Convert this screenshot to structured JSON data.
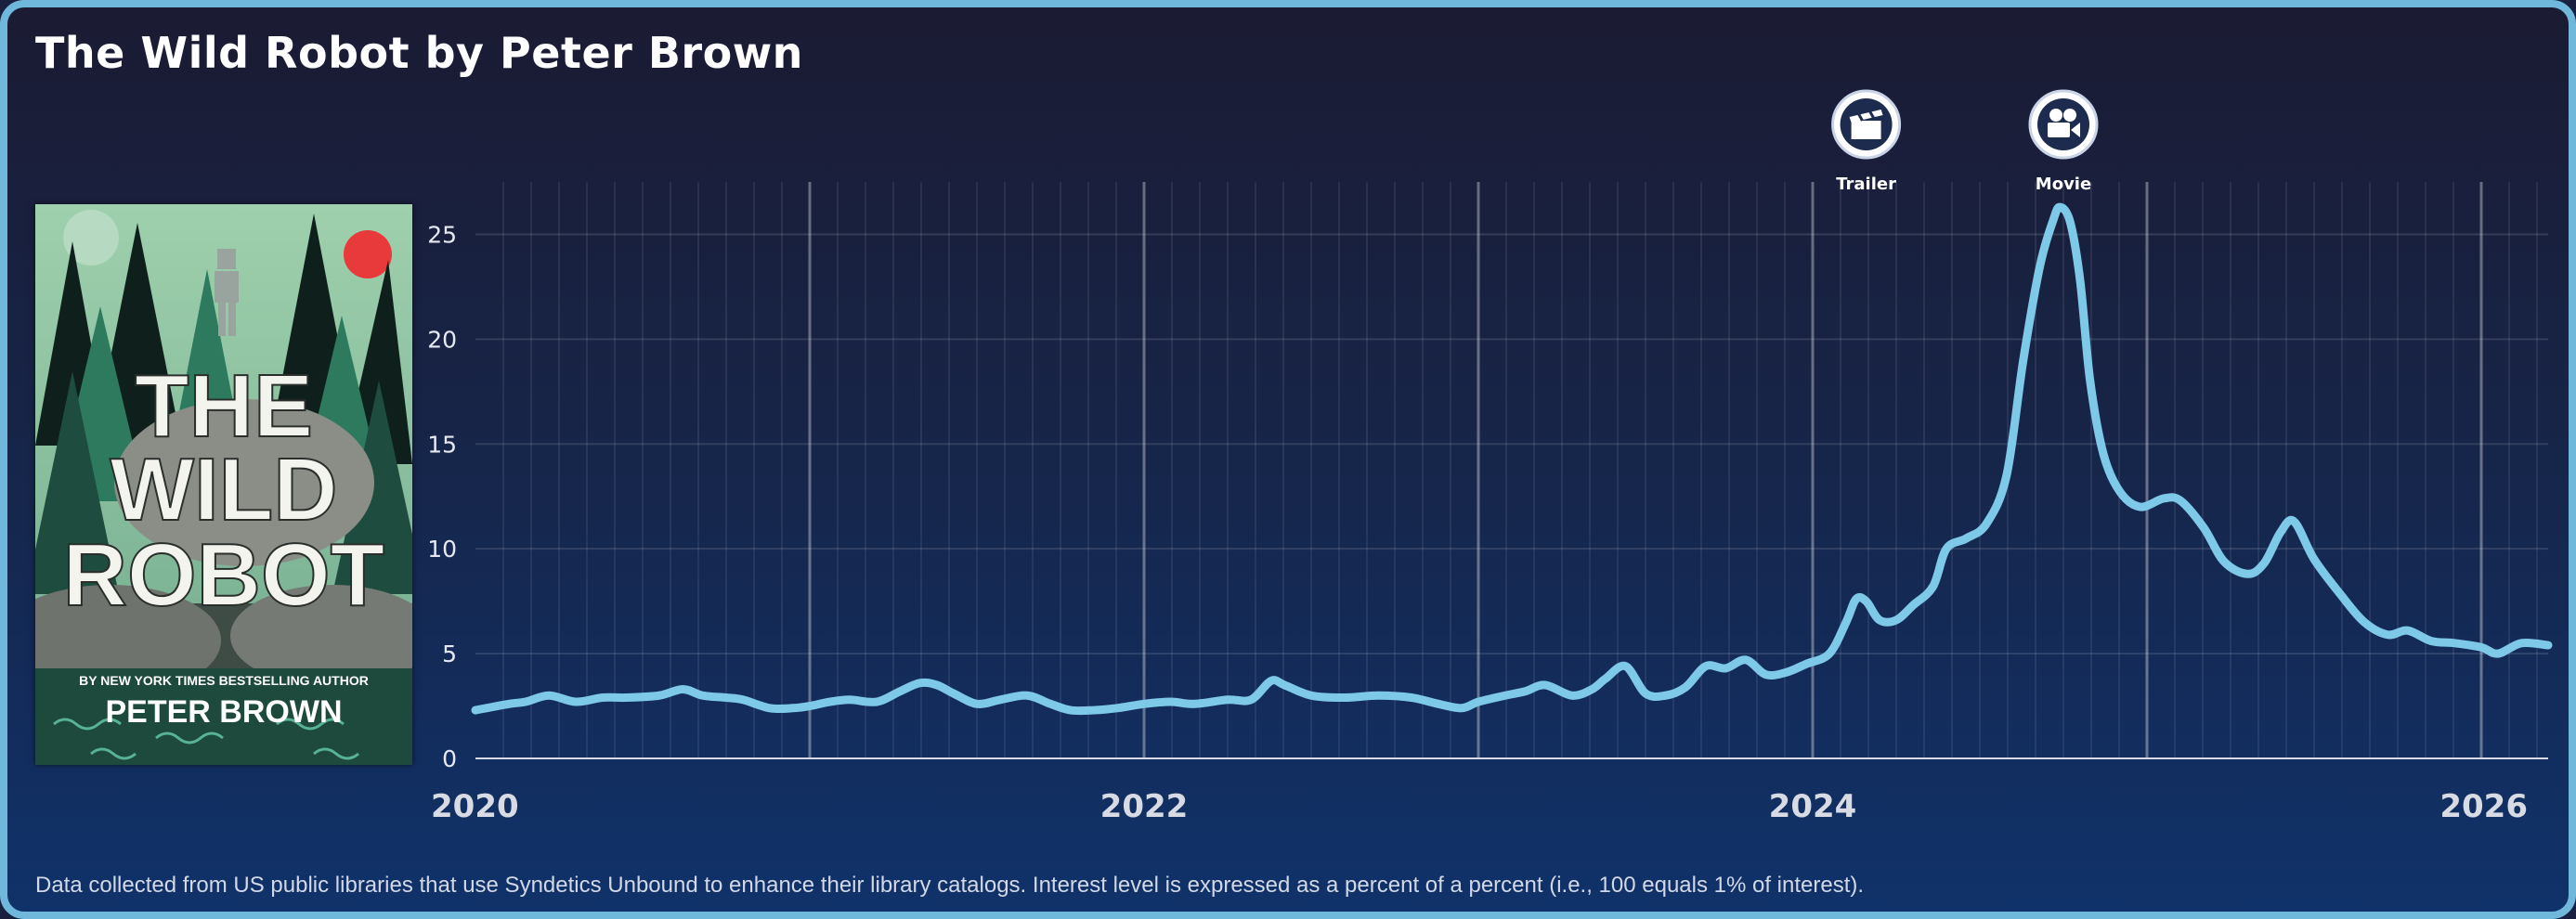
{
  "title": "The Wild Robot by Peter Brown",
  "cover": {
    "title_line1": "THE",
    "title_line2": "WILD",
    "title_line3": "ROBOT",
    "tagline": "BY NEW YORK TIMES BESTSELLING AUTHOR",
    "author": "PETER BROWN"
  },
  "footnote": "Data collected from US public libraries that use Syndetics Unbound to enhance their library catalogs. Interest level is expressed as a percent of a percent (i.e., 100 equals 1% of interest).",
  "colors": {
    "line": "#7ec8e8",
    "border": "#6fb8dc",
    "background_top": "#1b1b33",
    "background_bottom": "#10326a"
  },
  "chart_data": {
    "type": "line",
    "title": "The Wild Robot by Peter Brown",
    "xlabel": "",
    "ylabel": "",
    "xlim": [
      2020.0,
      2026.2
    ],
    "ylim": [
      0,
      27.5
    ],
    "y_ticks": [
      0,
      5,
      10,
      15,
      20,
      25
    ],
    "x_ticks": [
      2020,
      2022,
      2024,
      2026
    ],
    "grid": true,
    "annotations": [
      {
        "label": "Trailer",
        "x": 2024.16,
        "icon": "clapperboard-icon"
      },
      {
        "label": "Movie",
        "x": 2024.75,
        "icon": "movie-camera-icon"
      }
    ],
    "series": [
      {
        "x": [
          2020.0,
          2020.1,
          2020.15,
          2020.22,
          2020.3,
          2020.38,
          2020.45,
          2020.55,
          2020.62,
          2020.68,
          2020.75,
          2020.8,
          2020.88,
          2020.95,
          2021.0,
          2021.06,
          2021.12,
          2021.2,
          2021.27,
          2021.33,
          2021.38,
          2021.43,
          2021.5,
          2021.57,
          2021.65,
          2021.72,
          2021.78,
          2021.85,
          2021.92,
          2022.0,
          2022.08,
          2022.15,
          2022.25,
          2022.32,
          2022.38,
          2022.42,
          2022.5,
          2022.6,
          2022.7,
          2022.8,
          2022.88,
          2022.95,
          2023.0,
          2023.08,
          2023.14,
          2023.2,
          2023.28,
          2023.34,
          2023.38,
          2023.44,
          2023.5,
          2023.56,
          2023.62,
          2023.68,
          2023.74,
          2023.8,
          2023.86,
          2023.92,
          2023.98,
          2024.05,
          2024.1,
          2024.13,
          2024.16,
          2024.2,
          2024.25,
          2024.3,
          2024.36,
          2024.4,
          2024.46,
          2024.52,
          2024.58,
          2024.63,
          2024.68,
          2024.72,
          2024.74,
          2024.77,
          2024.8,
          2024.83,
          2024.87,
          2024.92,
          2024.98,
          2025.05,
          2025.1,
          2025.17,
          2025.23,
          2025.3,
          2025.35,
          2025.4,
          2025.44,
          2025.5,
          2025.58,
          2025.65,
          2025.72,
          2025.78,
          2025.85,
          2025.92,
          2026.0,
          2026.05,
          2026.12,
          2026.2
        ],
        "y": [
          2.3,
          2.6,
          2.7,
          3.0,
          2.7,
          2.9,
          2.9,
          3.0,
          3.3,
          3.0,
          2.9,
          2.8,
          2.4,
          2.4,
          2.5,
          2.7,
          2.8,
          2.7,
          3.2,
          3.6,
          3.5,
          3.1,
          2.6,
          2.8,
          3.0,
          2.6,
          2.3,
          2.3,
          2.4,
          2.6,
          2.7,
          2.6,
          2.8,
          2.8,
          3.7,
          3.5,
          3.0,
          2.9,
          3.0,
          2.9,
          2.6,
          2.4,
          2.7,
          3.0,
          3.2,
          3.5,
          3.0,
          3.3,
          3.8,
          4.4,
          3.1,
          3.0,
          3.4,
          4.4,
          4.3,
          4.7,
          4.0,
          4.1,
          4.5,
          5.0,
          6.5,
          7.6,
          7.5,
          6.6,
          6.6,
          7.3,
          8.2,
          10.0,
          10.5,
          11.2,
          13.5,
          19.0,
          23.5,
          25.7,
          26.3,
          25.6,
          22.8,
          18.0,
          14.5,
          12.7,
          12.0,
          12.4,
          12.3,
          11.0,
          9.4,
          8.8,
          9.3,
          10.8,
          11.3,
          9.5,
          7.8,
          6.5,
          5.9,
          6.1,
          5.6,
          5.5,
          5.3,
          5.0,
          5.5,
          5.4
        ]
      }
    ]
  }
}
